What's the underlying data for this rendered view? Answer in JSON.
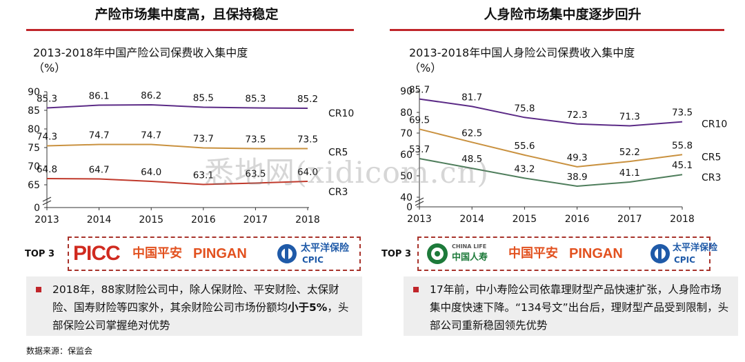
{
  "left": {
    "heading": "产险市场集中度高，且保持稳定",
    "title": "2013-2018年中国产险公司保费收入集中度\n（%）",
    "top3_label": "TOP 3",
    "logos": [
      "PICC",
      "中国平安",
      "PINGAN",
      "太平洋保险",
      "CPIC"
    ],
    "note_parts": [
      "2018年，88家财险公司中，除人保财险、平安财险、太保财险、国寿财险等四家外，其余财险公司市场份额均",
      "小于5%",
      "，头部保险公司掌握绝对优势"
    ]
  },
  "right": {
    "heading": "人身险市场集中度逐步回升",
    "title": "2013-2018年中国人身险公司保费收入集中度\n（%）",
    "top3_label": "TOP 3",
    "logos": [
      "CHINA LIFE",
      "中国人寿",
      "中国平安",
      "PINGAN",
      "太平洋保险",
      "CPIC"
    ],
    "note": "17年前，中小寿险公司依靠理财型产品快速扩张，人身险市场集中度快速下降。“134号文”出台后，理财型产品受到限制，头部公司重新稳固领先优势"
  },
  "source": "数据来源：保监会",
  "watermark": "悉地网(xidicom.cn)",
  "colors": {
    "accent": "#c0252a",
    "cr10": "#5b2a86",
    "cr5": "#c9913f",
    "cr3_left": "#c0392b",
    "cr3_right": "#4e7d5b"
  },
  "chart_data": [
    {
      "type": "line",
      "categories": [
        "2013",
        "2014",
        "2015",
        "2016",
        "2017",
        "2018"
      ],
      "series": [
        {
          "name": "CR10",
          "values": [
            85.3,
            86.1,
            86.2,
            85.5,
            85.3,
            85.2
          ]
        },
        {
          "name": "CR5",
          "values": [
            74.3,
            74.7,
            74.7,
            73.7,
            73.5,
            73.5
          ]
        },
        {
          "name": "CR3",
          "values": [
            64.8,
            64.7,
            64.0,
            63.1,
            63.5,
            64.0
          ]
        }
      ],
      "yticks": [
        "90",
        "85",
        "80",
        "75",
        "70",
        "65",
        "0"
      ],
      "ylim": [
        63,
        90
      ],
      "axis_break": true,
      "grid": false
    },
    {
      "type": "line",
      "categories": [
        "2013",
        "2014",
        "2015",
        "2016",
        "2017",
        "2018"
      ],
      "series": [
        {
          "name": "CR10",
          "values": [
            85.7,
            81.7,
            75.8,
            72.3,
            71.3,
            73.5
          ]
        },
        {
          "name": "CR5",
          "values": [
            69.5,
            62.5,
            55.6,
            49.3,
            52.2,
            55.8
          ]
        },
        {
          "name": "CR3",
          "values": [
            53.7,
            48.5,
            43.2,
            38.9,
            41.1,
            45.1
          ]
        }
      ],
      "yticks": [
        "90",
        "80",
        "70",
        "60",
        "50",
        "40",
        "0"
      ],
      "ylim": [
        35,
        90
      ],
      "axis_break": true,
      "grid": false
    }
  ]
}
